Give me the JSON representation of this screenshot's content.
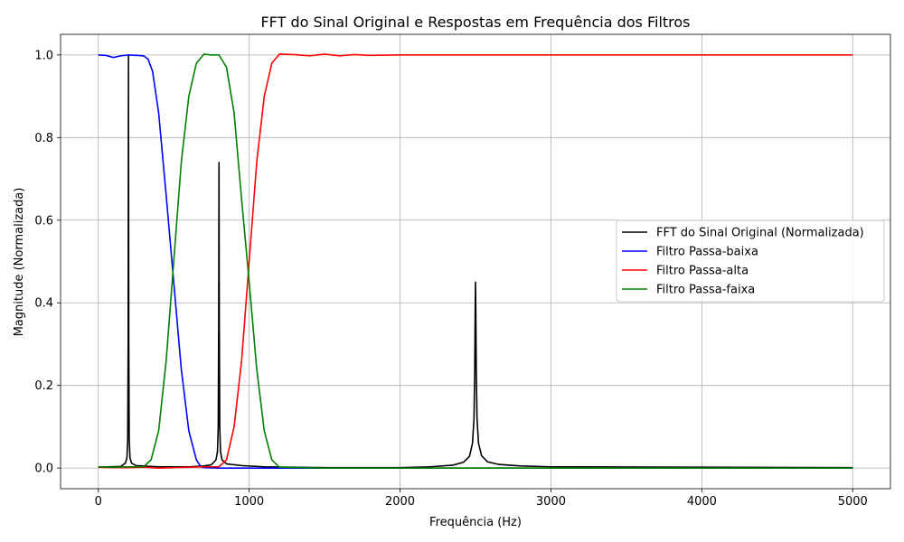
{
  "chart_data": {
    "type": "line",
    "title": "FFT do Sinal Original e Respostas em Frequência dos Filtros",
    "xlabel": "Frequência (Hz)",
    "ylabel": "Magnitude (Normalizada)",
    "xlim": [
      -250,
      5250
    ],
    "ylim": [
      -0.05,
      1.05
    ],
    "x_ticks": [
      0,
      1000,
      2000,
      3000,
      4000,
      5000
    ],
    "x_tick_labels": [
      "0",
      "1000",
      "2000",
      "3000",
      "4000",
      "5000"
    ],
    "y_ticks": [
      0.0,
      0.2,
      0.4,
      0.6,
      0.8,
      1.0
    ],
    "y_tick_labels": [
      "0.0",
      "0.2",
      "0.4",
      "0.6",
      "0.8",
      "1.0"
    ],
    "grid": true,
    "legend_position": "center-right",
    "series": [
      {
        "name": "FFT do Sinal Original (Normalizada)",
        "color": "#000000",
        "x": [
          0,
          150,
          180,
          190,
          195,
          198,
          200,
          202,
          205,
          210,
          220,
          250,
          400,
          600,
          700,
          750,
          780,
          790,
          795,
          798,
          800,
          802,
          805,
          810,
          820,
          850,
          950,
          1100,
          1500,
          2000,
          2200,
          2350,
          2420,
          2460,
          2480,
          2490,
          2495,
          2498,
          2500,
          2502,
          2505,
          2510,
          2520,
          2540,
          2580,
          2650,
          2800,
          3000,
          4000,
          5000
        ],
        "y": [
          0.002,
          0.004,
          0.012,
          0.025,
          0.07,
          0.3,
          1.0,
          0.3,
          0.07,
          0.025,
          0.012,
          0.006,
          0.003,
          0.003,
          0.005,
          0.008,
          0.02,
          0.04,
          0.1,
          0.35,
          0.74,
          0.35,
          0.1,
          0.04,
          0.02,
          0.01,
          0.006,
          0.003,
          0.001,
          0.001,
          0.003,
          0.007,
          0.014,
          0.028,
          0.06,
          0.12,
          0.24,
          0.38,
          0.45,
          0.38,
          0.24,
          0.12,
          0.06,
          0.03,
          0.015,
          0.009,
          0.005,
          0.003,
          0.002,
          0.001
        ]
      },
      {
        "name": "Filtro Passa-baixa",
        "color": "#0000ff",
        "x": [
          0,
          50,
          100,
          150,
          200,
          250,
          300,
          330,
          360,
          400,
          450,
          500,
          550,
          600,
          650,
          680,
          700,
          800,
          1000,
          1200,
          2000,
          3000,
          4000,
          5000
        ],
        "y": [
          1.0,
          0.999,
          0.994,
          0.998,
          1.0,
          0.999,
          0.998,
          0.99,
          0.96,
          0.86,
          0.66,
          0.45,
          0.24,
          0.09,
          0.02,
          0.003,
          0.001,
          0.0,
          0.0,
          0.0,
          0.0,
          0.0,
          0.0,
          0.0
        ]
      },
      {
        "name": "Filtro Passa-alta",
        "color": "#ff0000",
        "x": [
          0,
          100,
          200,
          300,
          400,
          500,
          600,
          700,
          800,
          850,
          900,
          950,
          1000,
          1050,
          1100,
          1150,
          1200,
          1300,
          1400,
          1500,
          1600,
          1700,
          1800,
          2000,
          2500,
          3000,
          4000,
          5000
        ],
        "y": [
          0.002,
          0.001,
          0.001,
          0.002,
          0.0,
          0.001,
          0.002,
          0.003,
          0.003,
          0.02,
          0.1,
          0.26,
          0.5,
          0.74,
          0.9,
          0.98,
          1.002,
          1.001,
          0.998,
          1.002,
          0.998,
          1.001,
          0.999,
          1.0,
          1.0,
          1.0,
          1.0,
          1.0
        ]
      },
      {
        "name": "Filtro Passa-faixa",
        "color": "#008000",
        "x": [
          0,
          100,
          200,
          300,
          350,
          400,
          450,
          500,
          550,
          600,
          650,
          700,
          750,
          800,
          850,
          900,
          950,
          1000,
          1050,
          1100,
          1150,
          1200,
          1500,
          2000,
          3000,
          4000,
          5000
        ],
        "y": [
          0.003,
          0.002,
          0.003,
          0.003,
          0.02,
          0.09,
          0.26,
          0.5,
          0.74,
          0.9,
          0.98,
          1.002,
          1.0,
          1.0,
          0.97,
          0.86,
          0.65,
          0.45,
          0.24,
          0.09,
          0.02,
          0.002,
          0.0,
          0.0,
          0.0,
          0.0,
          0.0
        ]
      }
    ]
  }
}
